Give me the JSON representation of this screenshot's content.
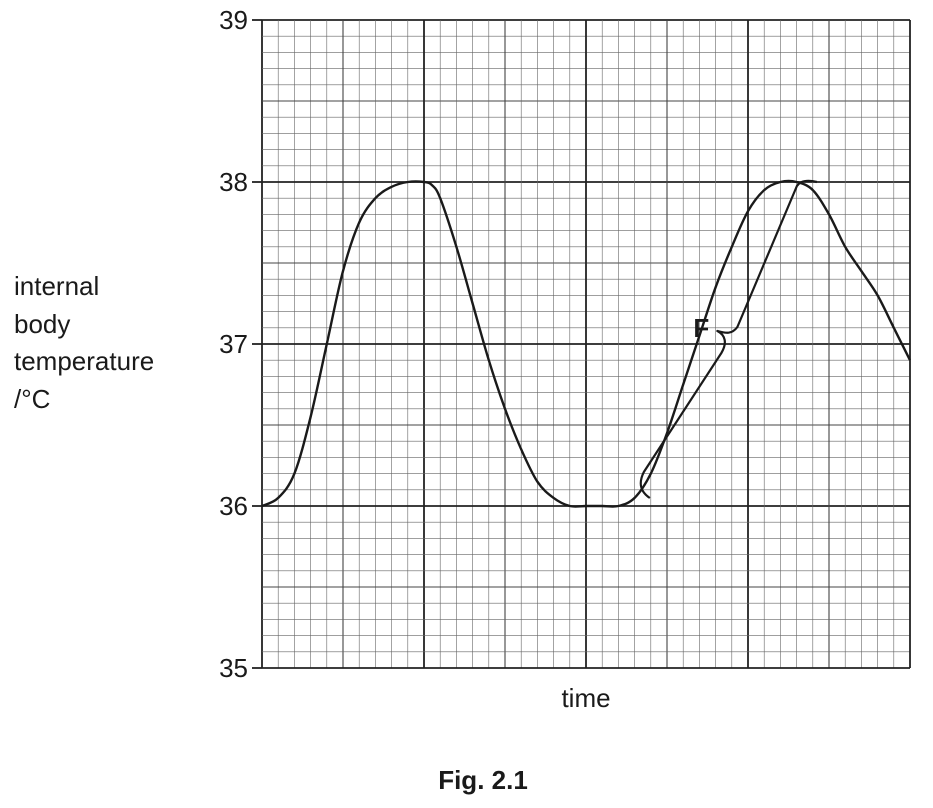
{
  "chart_data": {
    "type": "line",
    "caption": "Fig. 2.1",
    "xlabel": "time",
    "ylabel_lines": [
      "internal",
      "body",
      "temperature",
      "/°C"
    ],
    "ylim": [
      35,
      39
    ],
    "yticks": [
      35,
      36,
      37,
      38,
      39
    ],
    "xlim": [
      0,
      40
    ],
    "grid": true,
    "series": [
      {
        "values_x": [
          0,
          1,
          2,
          3,
          4,
          5,
          6,
          7,
          8,
          9,
          10,
          10.5,
          11,
          12,
          13,
          14,
          15,
          16,
          17,
          18,
          19,
          20,
          21,
          22,
          23,
          24,
          25,
          26,
          27,
          28,
          29,
          30,
          31,
          32,
          33,
          34,
          35,
          36,
          37,
          38,
          39,
          40
        ],
        "values_y": [
          36.0,
          36.05,
          36.2,
          36.55,
          37.0,
          37.45,
          37.75,
          37.9,
          37.97,
          38.0,
          38.0,
          37.98,
          37.9,
          37.6,
          37.25,
          36.9,
          36.6,
          36.35,
          36.15,
          36.05,
          36.0,
          36.0,
          36.0,
          36.0,
          36.05,
          36.2,
          36.45,
          36.75,
          37.05,
          37.35,
          37.6,
          37.82,
          37.95,
          38.0,
          38.0,
          37.95,
          37.8,
          37.6,
          37.45,
          37.3,
          37.1,
          36.9
        ]
      }
    ],
    "annotation": {
      "label": "F",
      "x_start": 23.2,
      "x_end": 34.5,
      "y_start": 36.0,
      "y_end": 38.0
    }
  }
}
